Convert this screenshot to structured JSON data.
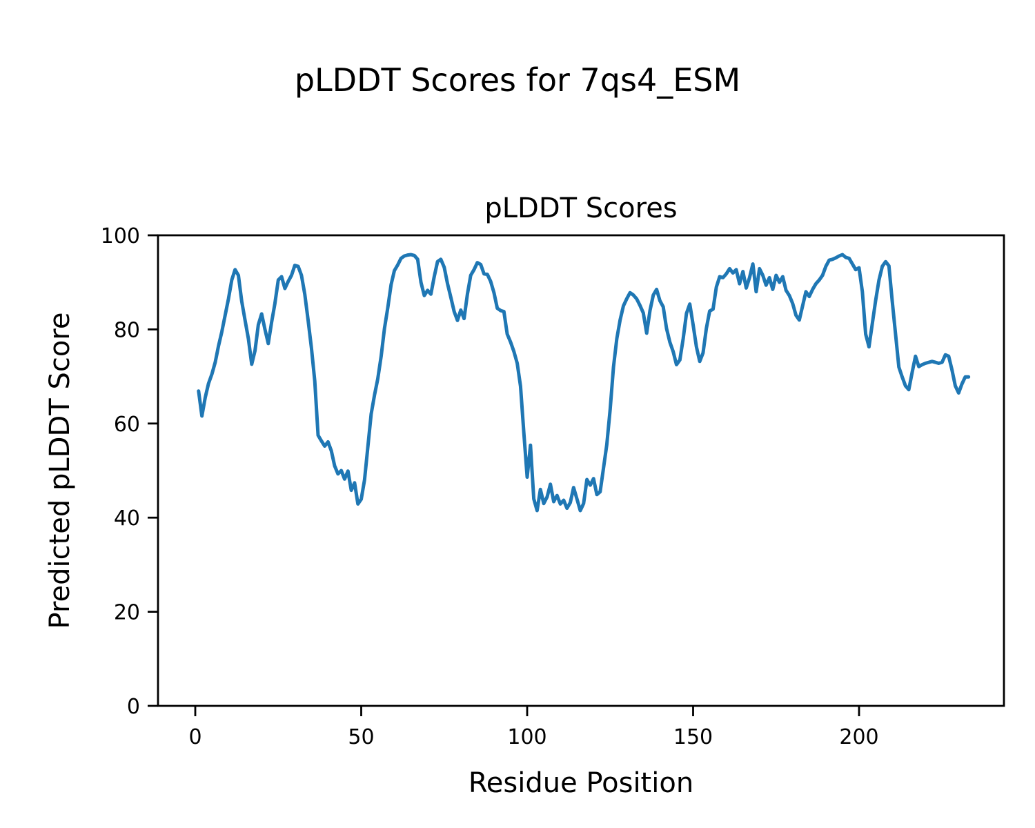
{
  "figure": {
    "suptitle": "pLDDT Scores for 7qs4_ESM"
  },
  "chart_data": {
    "type": "line",
    "title": "pLDDT Scores",
    "xlabel": "Residue Position",
    "ylabel": "Predicted pLDDT Score",
    "series_name": "pLDDT",
    "line_color": "#1f77b4",
    "grid": false,
    "legend": "none",
    "x_ticks": [
      0,
      50,
      100,
      150,
      200
    ],
    "y_ticks": [
      0,
      20,
      40,
      60,
      80,
      100
    ],
    "xlim": [
      -10.6,
      244.6
    ],
    "ylim": [
      0,
      100
    ],
    "x_start": 1,
    "values": [
      66.9,
      61.6,
      65.5,
      68.5,
      70.5,
      73.0,
      76.5,
      79.5,
      83.0,
      86.5,
      90.5,
      92.7,
      91.5,
      86.0,
      82.0,
      78.0,
      72.6,
      75.5,
      81.0,
      83.3,
      80.0,
      77.0,
      81.5,
      85.5,
      90.5,
      91.2,
      88.7,
      90.2,
      91.5,
      93.6,
      93.4,
      91.5,
      87.5,
      82.0,
      76.0,
      69.0,
      57.5,
      56.3,
      55.2,
      56.1,
      54.2,
      51.0,
      49.3,
      50.0,
      48.2,
      49.9,
      45.8,
      47.4,
      42.9,
      43.9,
      48.0,
      55.0,
      62.0,
      66.0,
      69.5,
      74.3,
      80.2,
      84.6,
      89.5,
      92.5,
      93.7,
      95.1,
      95.6,
      95.8,
      95.9,
      95.7,
      94.9,
      90.0,
      87.2,
      88.3,
      87.5,
      91.2,
      94.4,
      94.9,
      93.2,
      89.7,
      86.8,
      83.8,
      81.9,
      84.1,
      82.3,
      87.5,
      91.5,
      92.7,
      94.2,
      93.8,
      91.8,
      91.7,
      90.2,
      87.8,
      84.5,
      84.0,
      83.8,
      79.0,
      77.3,
      75.3,
      72.8,
      67.9,
      58.0,
      48.6,
      55.4,
      44.0,
      41.5,
      46.0,
      43.0,
      44.4,
      47.1,
      43.4,
      44.7,
      42.9,
      43.7,
      42.0,
      43.2,
      46.4,
      44.0,
      41.5,
      43.0,
      48.1,
      46.9,
      48.3,
      44.9,
      45.5,
      50.5,
      55.5,
      63.0,
      72.0,
      78.0,
      82.0,
      85.0,
      86.5,
      87.8,
      87.3,
      86.5,
      85.1,
      83.5,
      79.2,
      84.0,
      87.3,
      88.5,
      86.1,
      84.8,
      80.2,
      77.3,
      75.3,
      72.5,
      73.5,
      78.0,
      83.4,
      85.4,
      81.0,
      76.3,
      73.2,
      75.0,
      80.2,
      83.9,
      84.3,
      89.0,
      91.2,
      91.0,
      91.8,
      92.9,
      92.0,
      92.7,
      89.7,
      92.3,
      88.8,
      91.0,
      93.9,
      88.0,
      92.9,
      91.5,
      89.4,
      91.0,
      88.5,
      91.5,
      90.0,
      91.2,
      88.3,
      87.2,
      85.5,
      83.0,
      82.0,
      85.0,
      88.0,
      87.0,
      88.5,
      89.7,
      90.5,
      91.5,
      93.4,
      94.7,
      94.9,
      95.2,
      95.6,
      95.9,
      95.3,
      95.1,
      93.9,
      92.7,
      93.1,
      88.0,
      79.0,
      76.3,
      81.2,
      86.1,
      90.5,
      93.4,
      94.4,
      93.5,
      86.0,
      79.0,
      72.0,
      69.9,
      68.0,
      67.2,
      70.9,
      74.3,
      72.1,
      72.5,
      72.8,
      73.0,
      73.2,
      73.0,
      72.8,
      73.0,
      74.6,
      74.3,
      71.4,
      68.0,
      66.5,
      68.4,
      69.9,
      69.9
    ]
  }
}
